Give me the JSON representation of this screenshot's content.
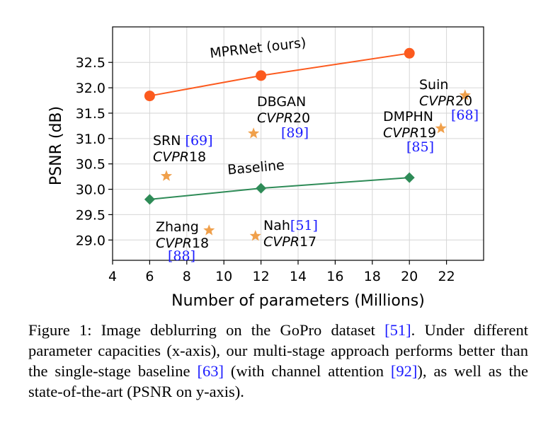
{
  "chart_data": {
    "type": "line",
    "xlabel": "Number of parameters (Millions)",
    "ylabel": "PSNR (dB)",
    "xlim": [
      4,
      24
    ],
    "ylim": [
      28.6,
      33.2
    ],
    "xticks": [
      4,
      6,
      8,
      10,
      12,
      14,
      16,
      18,
      20,
      22
    ],
    "yticks": [
      29.0,
      29.5,
      30.0,
      30.5,
      31.0,
      31.5,
      32.0,
      32.5
    ],
    "grid": true,
    "series": [
      {
        "name": "MPRNet (ours)",
        "type": "line",
        "marker": "circle",
        "color": "#fc5a1e",
        "x": [
          6,
          12,
          20
        ],
        "y": [
          31.84,
          32.24,
          32.68
        ]
      },
      {
        "name": "Baseline",
        "type": "line",
        "marker": "diamond",
        "color": "#2e8b57",
        "x": [
          6,
          12,
          20
        ],
        "y": [
          29.8,
          30.02,
          30.23
        ]
      }
    ],
    "methods": [
      {
        "name": "SRN",
        "venue": "CVPR",
        "year": "18",
        "ref": "[69]",
        "x": 6.9,
        "y": 30.26
      },
      {
        "name": "DBGAN",
        "venue": "CVPR",
        "year": "20",
        "ref": "[89]",
        "x": 11.6,
        "y": 31.1
      },
      {
        "name": "DMPHN",
        "venue": "CVPR",
        "year": "19",
        "ref": "[85]",
        "x": 21.7,
        "y": 31.2
      },
      {
        "name": "Suin",
        "venue": "CVPR",
        "year": "20",
        "ref": "[68]",
        "x": 23.0,
        "y": 31.85
      },
      {
        "name": "Zhang",
        "venue": "CVPR",
        "year": "18",
        "ref": "[88]",
        "x": 9.2,
        "y": 29.19
      },
      {
        "name": "Nah",
        "venue": "CVPR",
        "year": "17",
        "ref": "[51]",
        "x": 11.7,
        "y": 29.08
      }
    ],
    "star_color": "#f0a04b"
  },
  "caption": {
    "label": "Figure 1:",
    "text_1": "Image deblurring on the GoPro dataset ",
    "ref_1": "[51]",
    "text_2": ". Under different parameter capacities (x-axis), our multi-stage approach performs better than the single-stage baseline ",
    "ref_2": "[63]",
    "text_3": " (with channel attention ",
    "ref_3": "[92]",
    "text_4": "), as well as the state-of-the-art (PSNR on y-axis)."
  }
}
